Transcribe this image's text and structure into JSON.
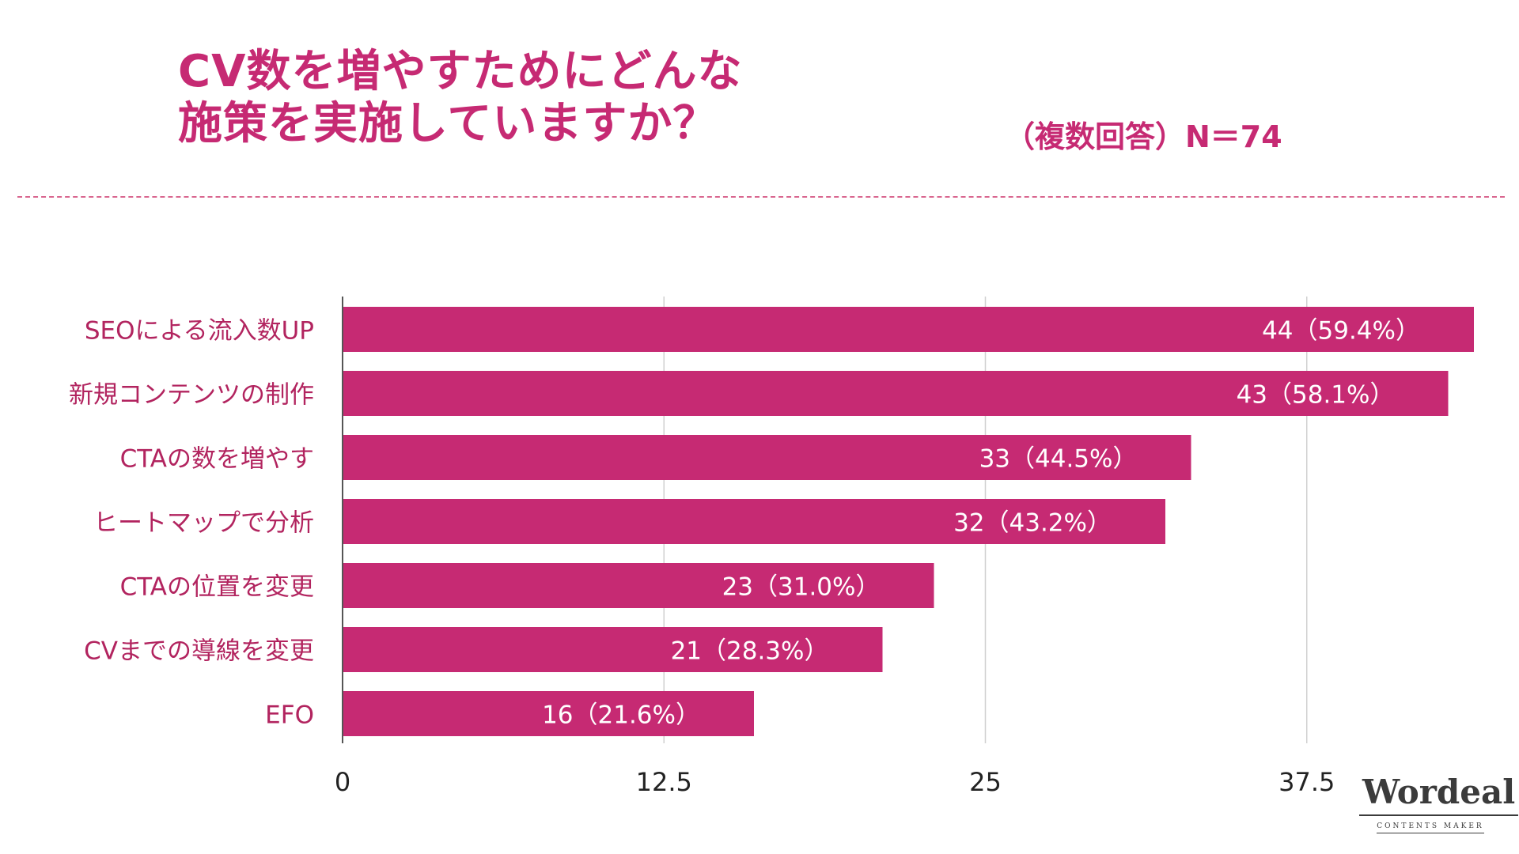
{
  "header": {
    "title_line1": "CV数を増やすためにどんな",
    "title_line2": "施策を実施していますか？",
    "note": "（複数回答）N＝74"
  },
  "colors": {
    "accent": "#c62a73",
    "bar": "#c62a73",
    "grid": "#d0d0d0",
    "axis": "#555555",
    "label_text": "#b2245f",
    "value_text": "#ffffff"
  },
  "logo": {
    "wordmark": "Wordeal",
    "tagline": "CONTENTS MAKER"
  },
  "chart_data": {
    "type": "bar",
    "orientation": "horizontal",
    "title": "CV数を増やすためにどんな施策を実施していますか？",
    "xlabel": "",
    "ylabel": "",
    "xlim": [
      0,
      44
    ],
    "xticks": [
      0,
      12.5,
      25,
      37.5
    ],
    "xtick_labels": [
      "0",
      "12.5",
      "25",
      "37.5"
    ],
    "grid": true,
    "categories": [
      "SEOによる流入数UP",
      "新規コンテンツの制作",
      "CTAの数を増やす",
      "ヒートマップで分析",
      "CTAの位置を変更",
      "CVまでの導線を変更",
      "EFO"
    ],
    "values": [
      44,
      43,
      33,
      32,
      23,
      21,
      16
    ],
    "data_labels": [
      "44（59.4%）",
      "43（58.1%）",
      "33（44.5%）",
      "32（43.2%）",
      "23（31.0%）",
      "21（28.3%）",
      "16（21.6%）"
    ]
  }
}
